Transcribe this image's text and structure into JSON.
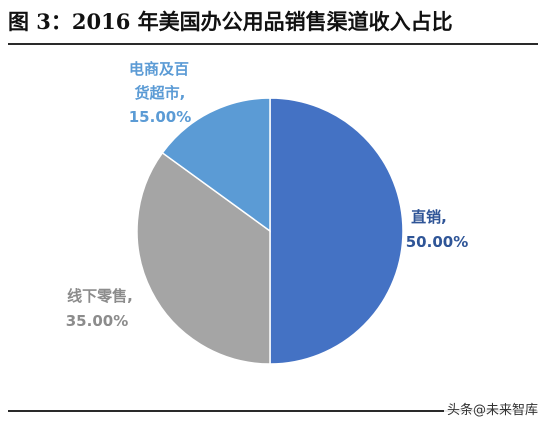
{
  "title": "图 3：2016 年美国办公用品销售渠道收入占比",
  "watermark": "头条@未来智库",
  "chart_data": {
    "type": "pie",
    "slices": [
      {
        "name": "直销",
        "value": 50.0,
        "label_value": "50.00%",
        "color": "#4472C4"
      },
      {
        "name": "线下零售",
        "value": 35.0,
        "label_value": "35.00%",
        "color": "#A5A5A5"
      },
      {
        "name": "电商及百货超市",
        "value": 15.0,
        "label_value": "15.00%",
        "color": "#5B9BD5"
      }
    ],
    "start_angle": "12 o'clock, clockwise",
    "legend": "none",
    "data_labels": "outside, category + percent"
  }
}
